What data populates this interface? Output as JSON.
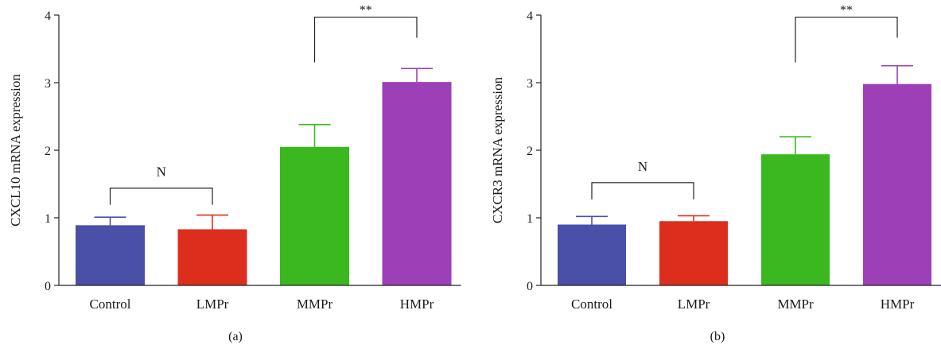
{
  "chart_data": [
    {
      "type": "bar",
      "panel_label": "(a)",
      "categories": [
        "Control",
        "LMPr",
        "MMPr",
        "HMPr"
      ],
      "values": [
        0.89,
        0.83,
        2.05,
        3.01
      ],
      "errors": [
        0.12,
        0.21,
        0.33,
        0.2
      ],
      "colors": [
        "#4a4fa8",
        "#dd2e1d",
        "#3bb81f",
        "#9d40b8"
      ],
      "ylabel": "CXCL10 mRNA expression",
      "xlabel": "",
      "ylim": [
        0,
        4
      ],
      "yticks": [
        "0",
        "1",
        "2",
        "3",
        "4"
      ],
      "grid": false,
      "annotations": [
        {
          "from": "Control",
          "to": "LMPr",
          "text": "N",
          "y": 1.44
        },
        {
          "from": "MMPr",
          "to": "HMPr",
          "text": "**",
          "y": 3.97
        }
      ]
    },
    {
      "type": "bar",
      "panel_label": "(b)",
      "categories": [
        "Control",
        "LMPr",
        "MMPr",
        "HMPr"
      ],
      "values": [
        0.9,
        0.95,
        1.94,
        2.98
      ],
      "errors": [
        0.12,
        0.08,
        0.26,
        0.27
      ],
      "colors": [
        "#4a4fa8",
        "#dd2e1d",
        "#3bb81f",
        "#9d40b8"
      ],
      "ylabel": "CXCR3 mRNA expression",
      "xlabel": "",
      "ylim": [
        0,
        4
      ],
      "yticks": [
        "0",
        "1",
        "2",
        "3",
        "4"
      ],
      "grid": false,
      "annotations": [
        {
          "from": "Control",
          "to": "LMPr",
          "text": "N",
          "y": 1.52
        },
        {
          "from": "MMPr",
          "to": "HMPr",
          "text": "**",
          "y": 3.97
        }
      ]
    }
  ]
}
